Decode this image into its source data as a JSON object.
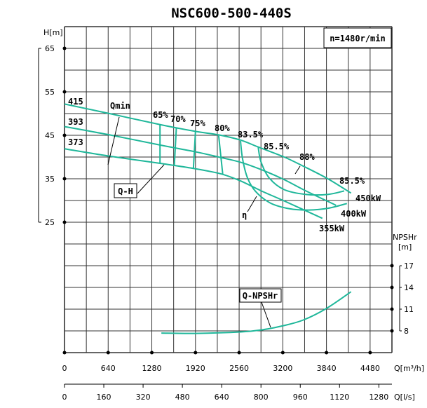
{
  "chart_data": {
    "type": "line",
    "title": "NSC600-500-440S",
    "speed_note": "n=1480r/min",
    "curve_color": "#1fb79a",
    "grid": true,
    "x_axis": {
      "label": "Q[m³/h]",
      "range": [
        0,
        4800
      ],
      "ticks": [
        "0",
        "640",
        "1280",
        "1920",
        "2560",
        "3200",
        "3840",
        "4480"
      ]
    },
    "x2_axis": {
      "label": "Q[l/s]",
      "ticks": [
        "0",
        "160",
        "320",
        "480",
        "640",
        "800",
        "960",
        "1120",
        "1280"
      ]
    },
    "y_axis": {
      "label": "H[m]",
      "range": [
        -5,
        70
      ],
      "ticks": [
        "65",
        "55",
        "45",
        "35",
        "25"
      ]
    },
    "y2_axis": {
      "label_top": "NPSHr",
      "label_unit": "[m]",
      "range": [
        5,
        50
      ],
      "ticks": [
        "17",
        "14",
        "11",
        "8"
      ]
    },
    "qh_series": [
      {
        "name": "415",
        "power_label": "450kW",
        "points": [
          [
            0,
            52.2
          ],
          [
            660,
            50.0
          ],
          [
            1420,
            47.4
          ],
          [
            1920,
            45.9
          ],
          [
            2260,
            45.1
          ],
          [
            2580,
            43.9
          ],
          [
            2840,
            42.3
          ],
          [
            3220,
            40.0
          ],
          [
            3500,
            37.9
          ],
          [
            3860,
            35.0
          ],
          [
            4200,
            31.7
          ]
        ]
      },
      {
        "name": "393",
        "power_label": "400kW",
        "points": [
          [
            0,
            47.0
          ],
          [
            660,
            45.1
          ],
          [
            1420,
            42.7
          ],
          [
            1920,
            41.2
          ],
          [
            2260,
            40.0
          ],
          [
            2580,
            38.8
          ],
          [
            2900,
            37.0
          ],
          [
            3220,
            34.8
          ],
          [
            3540,
            32.2
          ],
          [
            3980,
            28.9
          ]
        ]
      },
      {
        "name": "373",
        "power_label": "355kW",
        "points": [
          [
            0,
            41.9
          ],
          [
            660,
            40.2
          ],
          [
            1420,
            38.5
          ],
          [
            1920,
            37.3
          ],
          [
            2300,
            36.1
          ],
          [
            2580,
            34.5
          ],
          [
            2900,
            32.1
          ],
          [
            3220,
            29.9
          ],
          [
            3780,
            25.9
          ]
        ]
      }
    ],
    "efficiency_lines": [
      {
        "name": "65%",
        "points": [
          [
            1400,
            47.4
          ],
          [
            1400,
            38.5
          ]
        ]
      },
      {
        "name": "70%",
        "points": [
          [
            1640,
            46.8
          ],
          [
            1610,
            38.1
          ]
        ]
      },
      {
        "name": "75%",
        "points": [
          [
            1920,
            45.9
          ],
          [
            1890,
            37.5
          ]
        ]
      },
      {
        "name": "80%",
        "points": [
          [
            2260,
            44.9
          ],
          [
            2320,
            36.0
          ]
        ]
      },
      {
        "name": "83.5%",
        "points": [
          [
            2580,
            43.7
          ],
          [
            2610,
            39.6
          ],
          [
            2680,
            35.3
          ],
          [
            2800,
            32.1
          ],
          [
            3020,
            29.4
          ],
          [
            3300,
            28.1
          ],
          [
            3580,
            27.8
          ],
          [
            3860,
            28.2
          ],
          [
            4140,
            29.3
          ]
        ]
      },
      {
        "name": "85.5%",
        "points": [
          [
            2840,
            42.2
          ],
          [
            2880,
            38.9
          ],
          [
            3000,
            35.2
          ],
          [
            3220,
            32.5
          ],
          [
            3540,
            31.4
          ],
          [
            3860,
            31.4
          ],
          [
            4100,
            32.2
          ]
        ]
      }
    ],
    "efficiency_labels": [
      "65%",
      "70%",
      "75%",
      "80%",
      "83.5%",
      "85.5%",
      "88%",
      "85.5%"
    ],
    "npsh_series": {
      "name": "Q-NPSHr",
      "points": [
        [
          1420,
          7.7
        ],
        [
          1920,
          7.65
        ],
        [
          2580,
          7.85
        ],
        [
          2900,
          8.15
        ],
        [
          3200,
          8.7
        ],
        [
          3500,
          9.5
        ],
        [
          3840,
          11.1
        ],
        [
          4200,
          13.4
        ]
      ]
    },
    "annotations": {
      "qmin": "Qmin",
      "qh": "Q-H",
      "eta": "η"
    }
  }
}
